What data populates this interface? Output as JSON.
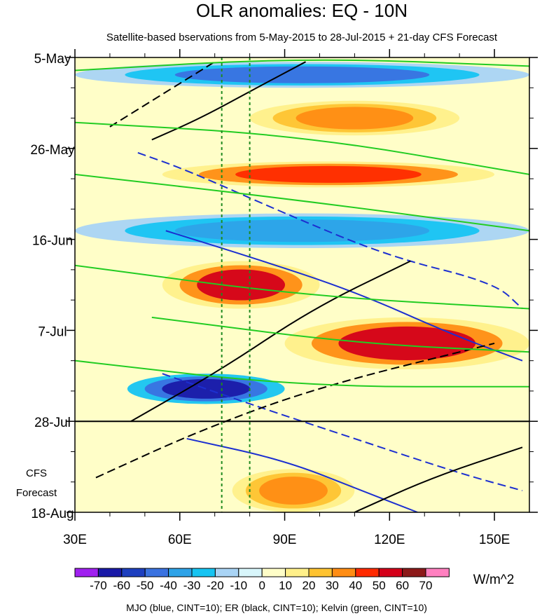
{
  "chart_data": {
    "type": "heatmap",
    "title": "OLR anomalies: EQ - 10N",
    "subtitle": "Satellite-based bservations from 5-May-2015 to 28-Jul-2015 + 21-day CFS Forecast",
    "x_axis": {
      "range": [
        30,
        160
      ],
      "units": "degrees East longitude",
      "ticks": [
        {
          "value": 30,
          "label": "30E"
        },
        {
          "value": 60,
          "label": "60E"
        },
        {
          "value": 90,
          "label": "90E"
        },
        {
          "value": 120,
          "label": "120E"
        },
        {
          "value": 150,
          "label": "150E"
        }
      ]
    },
    "y_axis": {
      "range_days": [
        0,
        105
      ],
      "units": "days since 5-May-2015 (increasing downward)",
      "ticks": [
        {
          "day": 0,
          "label": "5-May"
        },
        {
          "day": 21,
          "label": "26-May"
        },
        {
          "day": 42,
          "label": "16-Jun"
        },
        {
          "day": 63,
          "label": "7-Jul"
        },
        {
          "day": 84,
          "label": "28-Jul"
        },
        {
          "day": 105,
          "label": "18-Aug"
        }
      ]
    },
    "forecast_start_day": 84,
    "forecast_label_line1": "CFS",
    "forecast_label_line2": "Forecast",
    "reference_longitudes": [
      72,
      80
    ],
    "colorbar": {
      "units": "W/m^2",
      "levels": [
        -70,
        -60,
        -50,
        -40,
        -30,
        -20,
        -10,
        0,
        10,
        20,
        30,
        40,
        50,
        60,
        70
      ],
      "labels": [
        "-70",
        "-60",
        "-50",
        "-40",
        "-30",
        "-20",
        "-10",
        "0",
        "10",
        "20",
        "30",
        "40",
        "50",
        "60",
        "70"
      ],
      "colors": [
        "#a020f0",
        "#1a1aa8",
        "#1d3fbf",
        "#3a72e0",
        "#2ea3e8",
        "#17c4f2",
        "#a9d4f5",
        "#d8f6fb",
        "#fffec8",
        "#fff08a",
        "#fec331",
        "#ff8d14",
        "#ff2a00",
        "#d4001a",
        "#8c1a1a",
        "#ff80c0"
      ]
    },
    "footnote": "MJO (blue, CINT=10); ER (black, CINT=10); Kelvin (green, CINT=10)",
    "anomaly_features": [
      {
        "lon_start": 30,
        "lon_end": 160,
        "day_start": 1,
        "day_end": 7,
        "value": -40
      },
      {
        "lon_start": 80,
        "lon_end": 140,
        "day_start": 10,
        "day_end": 18,
        "value": 40
      },
      {
        "lon_start": 55,
        "lon_end": 150,
        "day_start": 24,
        "day_end": 30,
        "value": 50
      },
      {
        "lon_start": 30,
        "lon_end": 160,
        "day_start": 36,
        "day_end": 44,
        "value": -30
      },
      {
        "lon_start": 55,
        "lon_end": 100,
        "day_start": 47,
        "day_end": 58,
        "value": 60
      },
      {
        "lon_start": 90,
        "lon_end": 160,
        "day_start": 60,
        "day_end": 72,
        "value": 55
      },
      {
        "lon_start": 45,
        "lon_end": 90,
        "day_start": 73,
        "day_end": 80,
        "value": -60
      },
      {
        "lon_start": 75,
        "lon_end": 110,
        "day_start": 95,
        "day_end": 105,
        "value": 40
      }
    ],
    "mjo_contours": [
      {
        "sign": "neg",
        "points": [
          [
            48,
            22
          ],
          [
            62,
            26
          ],
          [
            90,
            36
          ],
          [
            120,
            46
          ],
          [
            150,
            52
          ],
          [
            158,
            58
          ]
        ]
      },
      {
        "sign": "pos",
        "points": [
          [
            56,
            40
          ],
          [
            80,
            46
          ],
          [
            110,
            54
          ],
          [
            138,
            64
          ],
          [
            158,
            70
          ]
        ]
      },
      {
        "sign": "neg",
        "points": [
          [
            55,
            73
          ],
          [
            80,
            80
          ],
          [
            110,
            88
          ],
          [
            140,
            96
          ],
          [
            158,
            100
          ]
        ]
      },
      {
        "sign": "pos",
        "points": [
          [
            62,
            88
          ],
          [
            90,
            93
          ],
          [
            112,
            100
          ],
          [
            128,
            105
          ]
        ]
      }
    ],
    "er_contours": [
      {
        "sign": "pos",
        "points": [
          [
            52,
            19
          ],
          [
            66,
            14
          ],
          [
            82,
            7
          ],
          [
            96,
            1
          ]
        ]
      },
      {
        "sign": "neg",
        "points": [
          [
            40,
            16
          ],
          [
            52,
            10
          ],
          [
            64,
            4
          ],
          [
            70,
            1
          ]
        ]
      },
      {
        "sign": "pos",
        "points": [
          [
            46,
            84
          ],
          [
            72,
            72
          ],
          [
            98,
            58
          ],
          [
            126,
            47
          ]
        ]
      },
      {
        "sign": "neg",
        "points": [
          [
            36,
            97
          ],
          [
            66,
            86
          ],
          [
            100,
            76
          ],
          [
            150,
            66
          ]
        ]
      },
      {
        "sign": "pos",
        "points": [
          [
            110,
            105
          ],
          [
            132,
            97
          ],
          [
            158,
            90
          ]
        ]
      }
    ],
    "kelvin_contours": [
      {
        "sign": "pos",
        "points": [
          [
            30,
            3
          ],
          [
            95,
            0
          ],
          [
            160,
            2
          ]
        ]
      },
      {
        "sign": "pos",
        "points": [
          [
            30,
            15
          ],
          [
            95,
            18
          ],
          [
            160,
            27
          ]
        ]
      },
      {
        "sign": "pos",
        "points": [
          [
            30,
            27
          ],
          [
            95,
            33
          ],
          [
            160,
            40
          ]
        ]
      },
      {
        "sign": "pos",
        "points": [
          [
            30,
            48
          ],
          [
            95,
            55
          ],
          [
            160,
            58
          ]
        ]
      },
      {
        "sign": "pos",
        "points": [
          [
            52,
            60
          ],
          [
            110,
            66
          ],
          [
            160,
            68
          ]
        ]
      },
      {
        "sign": "pos",
        "points": [
          [
            30,
            70
          ],
          [
            95,
            76
          ],
          [
            160,
            76
          ]
        ]
      }
    ]
  }
}
